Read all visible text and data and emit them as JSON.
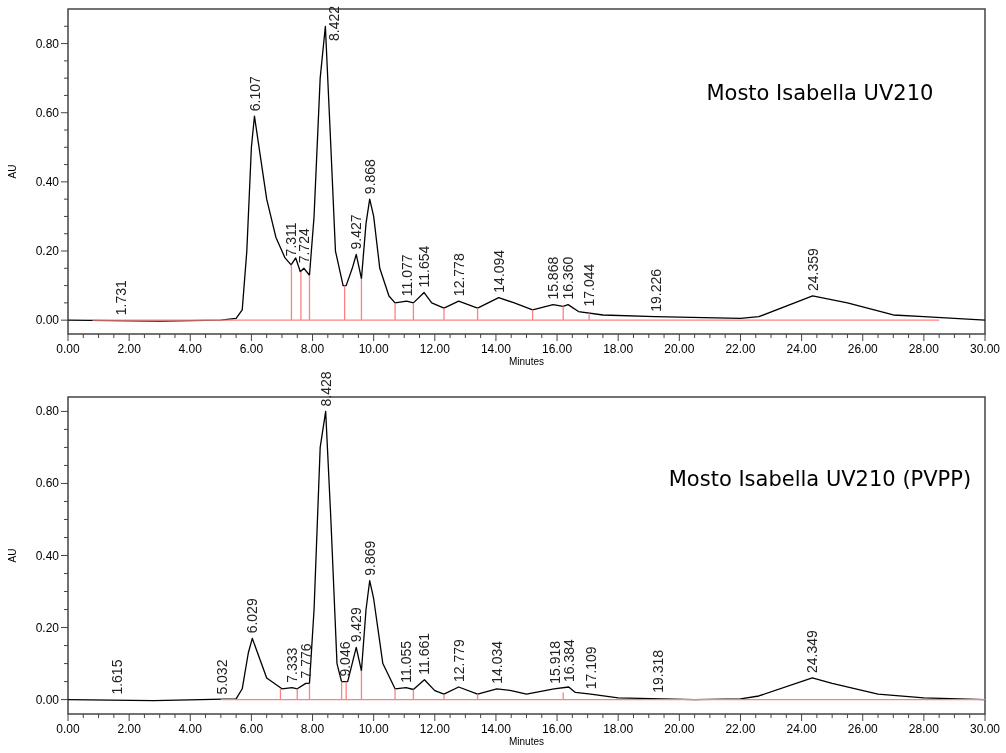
{
  "chart_data": [
    {
      "type": "line",
      "title": "Mosto Isabella UV210",
      "xlabel": "Minutes",
      "ylabel": "AU",
      "xlim": [
        0,
        30
      ],
      "ylim": [
        -0.04,
        0.9
      ],
      "xticks": [
        {
          "value": 0,
          "label": "0.00"
        },
        {
          "value": 0.5,
          "label": null
        },
        {
          "value": 1,
          "label": null
        },
        {
          "value": 1.5,
          "label": null
        },
        {
          "value": 2,
          "label": "2.00"
        },
        {
          "value": 2.5,
          "label": null
        },
        {
          "value": 3,
          "label": null
        },
        {
          "value": 3.5,
          "label": null
        },
        {
          "value": 4,
          "label": "4.00"
        },
        {
          "value": 4.5,
          "label": null
        },
        {
          "value": 5,
          "label": null
        },
        {
          "value": 5.5,
          "label": null
        },
        {
          "value": 6,
          "label": "6.00"
        },
        {
          "value": 6.5,
          "label": null
        },
        {
          "value": 7,
          "label": null
        },
        {
          "value": 7.5,
          "label": null
        },
        {
          "value": 8,
          "label": "8.00"
        },
        {
          "value": 8.5,
          "label": null
        },
        {
          "value": 9,
          "label": null
        },
        {
          "value": 9.5,
          "label": null
        },
        {
          "value": 10,
          "label": "10.00"
        },
        {
          "value": 10.5,
          "label": null
        },
        {
          "value": 11,
          "label": null
        },
        {
          "value": 11.5,
          "label": null
        },
        {
          "value": 12,
          "label": "12.00"
        },
        {
          "value": 12.5,
          "label": null
        },
        {
          "value": 13,
          "label": null
        },
        {
          "value": 13.5,
          "label": null
        },
        {
          "value": 14,
          "label": "14.00"
        },
        {
          "value": 14.5,
          "label": null
        },
        {
          "value": 15,
          "label": null
        },
        {
          "value": 15.5,
          "label": null
        },
        {
          "value": 16,
          "label": "16.00"
        },
        {
          "value": 16.5,
          "label": null
        },
        {
          "value": 17,
          "label": null
        },
        {
          "value": 17.5,
          "label": null
        },
        {
          "value": 18,
          "label": "18.00"
        },
        {
          "value": 18.5,
          "label": null
        },
        {
          "value": 19,
          "label": null
        },
        {
          "value": 19.5,
          "label": null
        },
        {
          "value": 20,
          "label": "20.00"
        },
        {
          "value": 20.5,
          "label": null
        },
        {
          "value": 21,
          "label": null
        },
        {
          "value": 21.5,
          "label": null
        },
        {
          "value": 22,
          "label": "22.00"
        },
        {
          "value": 22.5,
          "label": null
        },
        {
          "value": 23,
          "label": null
        },
        {
          "value": 23.5,
          "label": null
        },
        {
          "value": 24,
          "label": "24.00"
        },
        {
          "value": 24.5,
          "label": null
        },
        {
          "value": 25,
          "label": null
        },
        {
          "value": 25.5,
          "label": null
        },
        {
          "value": 26,
          "label": "26.00"
        },
        {
          "value": 26.5,
          "label": null
        },
        {
          "value": 27,
          "label": null
        },
        {
          "value": 27.5,
          "label": null
        },
        {
          "value": 28,
          "label": "28.00"
        },
        {
          "value": 28.5,
          "label": null
        },
        {
          "value": 29,
          "label": null
        },
        {
          "value": 29.5,
          "label": null
        },
        {
          "value": 30,
          "label": "30.00"
        }
      ],
      "yticks": [
        {
          "value": 0,
          "label": "0.00"
        },
        {
          "value": 0.05,
          "label": null
        },
        {
          "value": 0.1,
          "label": null
        },
        {
          "value": 0.15,
          "label": null
        },
        {
          "value": 0.2,
          "label": "0.20"
        },
        {
          "value": 0.25,
          "label": null
        },
        {
          "value": 0.3,
          "label": null
        },
        {
          "value": 0.35,
          "label": null
        },
        {
          "value": 0.4,
          "label": "0.40"
        },
        {
          "value": 0.45,
          "label": null
        },
        {
          "value": 0.5,
          "label": null
        },
        {
          "value": 0.55,
          "label": null
        },
        {
          "value": 0.6,
          "label": "0.60"
        },
        {
          "value": 0.65,
          "label": null
        },
        {
          "value": 0.7,
          "label": null
        },
        {
          "value": 0.75,
          "label": null
        },
        {
          "value": 0.8,
          "label": "0.80"
        },
        {
          "value": 0.85,
          "label": null
        }
      ],
      "grid": false,
      "series": [
        {
          "color": "#000000",
          "x": [
            0,
            3,
            5,
            5.5,
            5.7,
            5.85,
            6,
            6.1,
            6.25,
            6.5,
            6.8,
            7.1,
            7.3,
            7.45,
            7.6,
            7.72,
            7.9,
            8.05,
            8.25,
            8.42,
            8.6,
            8.75,
            9,
            9.1,
            9.3,
            9.43,
            9.6,
            9.75,
            9.87,
            10,
            10.2,
            10.5,
            10.7,
            11.08,
            11.3,
            11.65,
            11.9,
            12.3,
            12.78,
            13.4,
            14.09,
            14.6,
            15.2,
            15.87,
            16.2,
            16.36,
            16.7,
            17.5,
            19.2,
            22,
            22.6,
            24.36,
            25.5,
            27,
            28,
            30
          ],
          "values": [
            0,
            -0.003,
            0,
            0.005,
            0.03,
            0.2,
            0.5,
            0.59,
            0.5,
            0.35,
            0.24,
            0.18,
            0.16,
            0.18,
            0.14,
            0.15,
            0.13,
            0.3,
            0.7,
            0.85,
            0.5,
            0.2,
            0.1,
            0.1,
            0.15,
            0.19,
            0.12,
            0.28,
            0.35,
            0.3,
            0.15,
            0.07,
            0.05,
            0.055,
            0.05,
            0.08,
            0.05,
            0.035,
            0.055,
            0.035,
            0.065,
            0.05,
            0.03,
            0.045,
            0.04,
            0.045,
            0.025,
            0.015,
            0.01,
            0.005,
            0.01,
            0.07,
            0.05,
            0.015,
            0.01,
            0
          ]
        },
        {
          "color": "#ff8080",
          "x": [
            0.8,
            28.5,
            null,
            7.31,
            7.31,
            null,
            7.62,
            7.62,
            null,
            7.9,
            7.9,
            null,
            9.05,
            9.05,
            null,
            9.6,
            9.6,
            null,
            10.7,
            10.7,
            null,
            11.3,
            11.3,
            null,
            12.3,
            12.3,
            null,
            13.4,
            13.4,
            null,
            15.2,
            15.2,
            null,
            16.2,
            16.2,
            null,
            17.05,
            17.05
          ],
          "values": [
            0,
            0,
            null,
            0,
            0.16,
            null,
            0,
            0.14,
            null,
            0,
            0.13,
            null,
            0,
            0.1,
            null,
            0,
            0.12,
            null,
            0,
            0.05,
            null,
            0,
            0.05,
            null,
            0,
            0.035,
            null,
            0,
            0.035,
            null,
            0,
            0.03,
            null,
            0,
            0.04,
            null,
            0,
            0.02
          ]
        }
      ],
      "annotations": [
        {
          "text": "1.731",
          "x": 1.731,
          "y": 0
        },
        {
          "text": "6.107",
          "x": 6.107,
          "y": 0.59
        },
        {
          "text": "7.311",
          "x": 7.311,
          "y": 0.17
        },
        {
          "text": "7.724",
          "x": 7.724,
          "y": 0.15
        },
        {
          "text": "8.422",
          "x": 8.422,
          "y": 0.85
        },
        {
          "text": "9.427",
          "x": 9.427,
          "y": 0.19
        },
        {
          "text": "9.868",
          "x": 9.868,
          "y": 0.35
        },
        {
          "text": "11.077",
          "x": 11.077,
          "y": 0.055
        },
        {
          "text": "11.654",
          "x": 11.654,
          "y": 0.08
        },
        {
          "text": "12.778",
          "x": 12.778,
          "y": 0.055
        },
        {
          "text": "14.094",
          "x": 14.094,
          "y": 0.065
        },
        {
          "text": "15.868",
          "x": 15.868,
          "y": 0.045
        },
        {
          "text": "16.360",
          "x": 16.36,
          "y": 0.045
        },
        {
          "text": "17.044",
          "x": 17.044,
          "y": 0.025
        },
        {
          "text": "19.226",
          "x": 19.226,
          "y": 0.01
        },
        {
          "text": "24.359",
          "x": 24.359,
          "y": 0.07
        }
      ]
    },
    {
      "type": "line",
      "title": "Mosto Isabella UV210 (PVPP)",
      "xlabel": "Minutes",
      "ylabel": "AU",
      "xlim": [
        0,
        30
      ],
      "ylim": [
        -0.04,
        0.84
      ],
      "xticks": [
        {
          "value": 0,
          "label": "0.00"
        },
        {
          "value": 0.5,
          "label": null
        },
        {
          "value": 1,
          "label": null
        },
        {
          "value": 1.5,
          "label": null
        },
        {
          "value": 2,
          "label": "2.00"
        },
        {
          "value": 2.5,
          "label": null
        },
        {
          "value": 3,
          "label": null
        },
        {
          "value": 3.5,
          "label": null
        },
        {
          "value": 4,
          "label": "4.00"
        },
        {
          "value": 4.5,
          "label": null
        },
        {
          "value": 5,
          "label": null
        },
        {
          "value": 5.5,
          "label": null
        },
        {
          "value": 6,
          "label": "6.00"
        },
        {
          "value": 6.5,
          "label": null
        },
        {
          "value": 7,
          "label": null
        },
        {
          "value": 7.5,
          "label": null
        },
        {
          "value": 8,
          "label": "8.00"
        },
        {
          "value": 8.5,
          "label": null
        },
        {
          "value": 9,
          "label": null
        },
        {
          "value": 9.5,
          "label": null
        },
        {
          "value": 10,
          "label": "10.00"
        },
        {
          "value": 10.5,
          "label": null
        },
        {
          "value": 11,
          "label": null
        },
        {
          "value": 11.5,
          "label": null
        },
        {
          "value": 12,
          "label": "12.00"
        },
        {
          "value": 12.5,
          "label": null
        },
        {
          "value": 13,
          "label": null
        },
        {
          "value": 13.5,
          "label": null
        },
        {
          "value": 14,
          "label": "14.00"
        },
        {
          "value": 14.5,
          "label": null
        },
        {
          "value": 15,
          "label": null
        },
        {
          "value": 15.5,
          "label": null
        },
        {
          "value": 16,
          "label": "16.00"
        },
        {
          "value": 16.5,
          "label": null
        },
        {
          "value": 17,
          "label": null
        },
        {
          "value": 17.5,
          "label": null
        },
        {
          "value": 18,
          "label": "18.00"
        },
        {
          "value": 18.5,
          "label": null
        },
        {
          "value": 19,
          "label": null
        },
        {
          "value": 19.5,
          "label": null
        },
        {
          "value": 20,
          "label": "20.00"
        },
        {
          "value": 20.5,
          "label": null
        },
        {
          "value": 21,
          "label": null
        },
        {
          "value": 21.5,
          "label": null
        },
        {
          "value": 22,
          "label": "22.00"
        },
        {
          "value": 22.5,
          "label": null
        },
        {
          "value": 23,
          "label": null
        },
        {
          "value": 23.5,
          "label": null
        },
        {
          "value": 24,
          "label": "24.00"
        },
        {
          "value": 24.5,
          "label": null
        },
        {
          "value": 25,
          "label": null
        },
        {
          "value": 25.5,
          "label": null
        },
        {
          "value": 26,
          "label": "26.00"
        },
        {
          "value": 26.5,
          "label": null
        },
        {
          "value": 27,
          "label": null
        },
        {
          "value": 27.5,
          "label": null
        },
        {
          "value": 28,
          "label": "28.00"
        },
        {
          "value": 28.5,
          "label": null
        },
        {
          "value": 29,
          "label": null
        },
        {
          "value": 29.5,
          "label": null
        },
        {
          "value": 30,
          "label": "30.00"
        }
      ],
      "yticks": [
        {
          "value": 0,
          "label": "0.00"
        },
        {
          "value": 0.05,
          "label": null
        },
        {
          "value": 0.1,
          "label": null
        },
        {
          "value": 0.15,
          "label": null
        },
        {
          "value": 0.2,
          "label": "0.20"
        },
        {
          "value": 0.25,
          "label": null
        },
        {
          "value": 0.3,
          "label": null
        },
        {
          "value": 0.35,
          "label": null
        },
        {
          "value": 0.4,
          "label": "0.40"
        },
        {
          "value": 0.45,
          "label": null
        },
        {
          "value": 0.5,
          "label": null
        },
        {
          "value": 0.55,
          "label": null
        },
        {
          "value": 0.6,
          "label": "0.60"
        },
        {
          "value": 0.65,
          "label": null
        },
        {
          "value": 0.7,
          "label": null
        },
        {
          "value": 0.75,
          "label": null
        },
        {
          "value": 0.8,
          "label": "0.80"
        }
      ],
      "grid": false,
      "series": [
        {
          "color": "#000000",
          "x": [
            0,
            2.8,
            5.5,
            5.7,
            5.9,
            6.03,
            6.2,
            6.5,
            7,
            7.33,
            7.5,
            7.78,
            7.9,
            8.05,
            8.25,
            8.43,
            8.6,
            8.8,
            8.95,
            9.05,
            9.15,
            9.43,
            9.6,
            9.75,
            9.87,
            10,
            10.3,
            10.7,
            11.06,
            11.3,
            11.66,
            12,
            12.3,
            12.78,
            13.4,
            14.03,
            14.5,
            15,
            15.9,
            16.38,
            16.6,
            17.1,
            18,
            20.5,
            22,
            22.6,
            24.35,
            25,
            26.5,
            28,
            30
          ],
          "values": [
            0,
            -0.003,
            0.002,
            0.03,
            0.13,
            0.17,
            0.13,
            0.06,
            0.03,
            0.033,
            0.03,
            0.045,
            0.045,
            0.25,
            0.7,
            0.8,
            0.5,
            0.1,
            0.05,
            0.05,
            0.05,
            0.145,
            0.08,
            0.25,
            0.33,
            0.28,
            0.1,
            0.03,
            0.033,
            0.028,
            0.055,
            0.025,
            0.015,
            0.035,
            0.015,
            0.03,
            0.025,
            0.015,
            0.03,
            0.035,
            0.02,
            0.015,
            0.005,
            0,
            0.002,
            0.01,
            0.06,
            0.045,
            0.015,
            0.005,
            0
          ]
        },
        {
          "color": "#ff8080",
          "x": [
            5,
            30,
            null,
            6.95,
            6.95,
            null,
            7.5,
            7.5,
            null,
            7.9,
            7.9,
            null,
            8.95,
            8.95,
            null,
            9.1,
            9.1,
            null,
            9.6,
            9.6,
            null,
            10.7,
            10.7,
            null,
            11.3,
            11.3,
            null,
            12.3,
            12.3,
            null,
            13.4,
            13.4,
            null,
            16.2,
            16.2
          ],
          "values": [
            0,
            0,
            null,
            0,
            0.03,
            null,
            0,
            0.03,
            null,
            0,
            0.045,
            null,
            0,
            0.05,
            null,
            0,
            0.05,
            null,
            0,
            0.08,
            null,
            0,
            0.03,
            null,
            0,
            0.028,
            null,
            0,
            0.015,
            null,
            0,
            0.015,
            null,
            0,
            0.02
          ]
        }
      ],
      "annotations": [
        {
          "text": "1.615",
          "x": 1.615,
          "y": 0
        },
        {
          "text": "5.032",
          "x": 5.032,
          "y": 0
        },
        {
          "text": "6.029",
          "x": 6.029,
          "y": 0.17
        },
        {
          "text": "7.333",
          "x": 7.333,
          "y": 0.033
        },
        {
          "text": "7.776",
          "x": 7.776,
          "y": 0.045
        },
        {
          "text": "8.428",
          "x": 8.428,
          "y": 0.8
        },
        {
          "text": "9.046",
          "x": 9.046,
          "y": 0.05
        },
        {
          "text": "9.429",
          "x": 9.429,
          "y": 0.145
        },
        {
          "text": "9.869",
          "x": 9.869,
          "y": 0.33
        },
        {
          "text": "11.055",
          "x": 11.055,
          "y": 0.033
        },
        {
          "text": "11.661",
          "x": 11.661,
          "y": 0.055
        },
        {
          "text": "12.779",
          "x": 12.779,
          "y": 0.035
        },
        {
          "text": "14.034",
          "x": 14.034,
          "y": 0.03
        },
        {
          "text": "15.918",
          "x": 15.918,
          "y": 0.03
        },
        {
          "text": "16.384",
          "x": 16.384,
          "y": 0.035
        },
        {
          "text": "17.109",
          "x": 17.109,
          "y": 0.015
        },
        {
          "text": "19.318",
          "x": 19.318,
          "y": 0.005
        },
        {
          "text": "24.349",
          "x": 24.349,
          "y": 0.06
        }
      ]
    }
  ]
}
